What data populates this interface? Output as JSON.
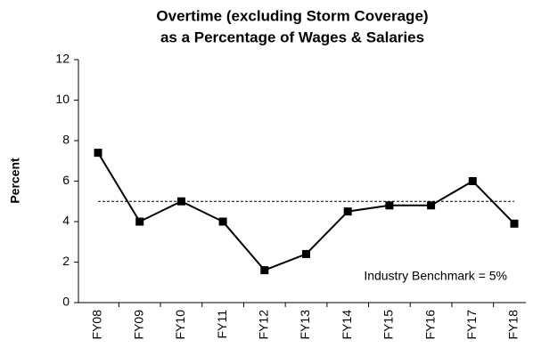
{
  "chart_data": {
    "type": "line",
    "title": [
      "Overtime (excluding Storm Coverage)",
      "as a Percentage of Wages & Salaries"
    ],
    "y_label": "Percent",
    "categories": [
      "FY08",
      "FY09",
      "FY10",
      "FY11",
      "FY12",
      "FY13",
      "FY14",
      "FY15",
      "FY16",
      "FY17",
      "FY18"
    ],
    "series": [
      {
        "name": "Overtime",
        "color": "#000000",
        "values": [
          7.4,
          4.0,
          5.0,
          4.0,
          1.6,
          2.4,
          4.5,
          4.8,
          4.8,
          6.0,
          3.9
        ]
      }
    ],
    "benchmark": 5,
    "annotation": "Industry Benchmark = 5%",
    "ylim": [
      0,
      12
    ],
    "yticks": [
      0,
      2,
      4,
      6,
      8,
      10,
      12
    ]
  }
}
